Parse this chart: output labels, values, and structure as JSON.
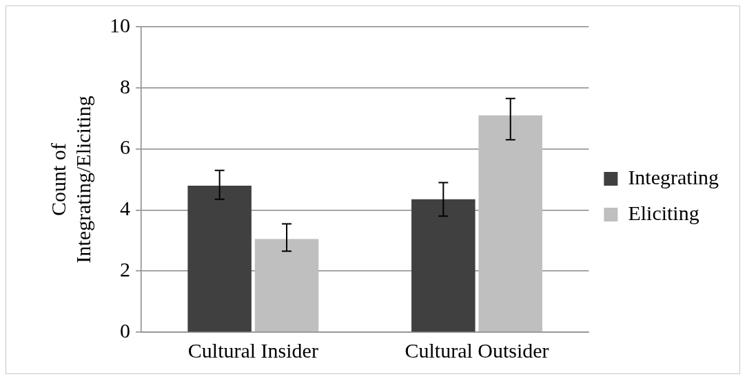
{
  "chart_data": {
    "type": "bar",
    "ylabel": "Count of Integrating/Eliciting",
    "categories": [
      "Cultural Insider",
      "Cultural Outsider"
    ],
    "series": [
      {
        "name": "Integrating",
        "color": "#404040",
        "values": [
          4.8,
          4.35
        ],
        "errors": [
          [
            4.35,
            5.3
          ],
          [
            3.8,
            4.9
          ]
        ]
      },
      {
        "name": "Eliciting",
        "color": "#bfbfbf",
        "values": [
          3.05,
          7.1
        ],
        "errors": [
          [
            2.65,
            3.55
          ],
          [
            6.3,
            7.65
          ]
        ]
      }
    ],
    "ylim": [
      0,
      10
    ],
    "yticks": [
      0,
      2,
      4,
      6,
      8,
      10
    ],
    "grid": "y",
    "legend": "right"
  }
}
